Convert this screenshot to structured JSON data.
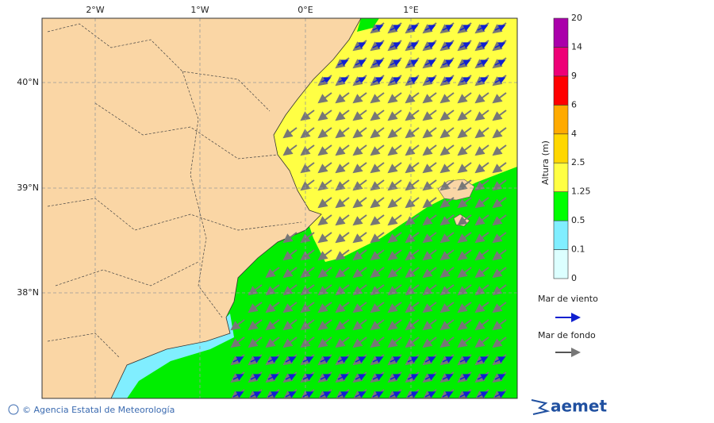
{
  "map": {
    "lon_labels": [
      "2°W",
      "1°W",
      "0°E",
      "1°E"
    ],
    "lat_labels": [
      "40°N",
      "39°N",
      "38°N"
    ],
    "colorbar": {
      "title": "Altura (m)",
      "levels": [
        0,
        0.1,
        0.5,
        1.25,
        2.5,
        4,
        6,
        9,
        14,
        20
      ],
      "colors": [
        "#dcffff",
        "#80eeff",
        "#00ff00",
        "#ffff44",
        "#ffd700",
        "#ffaa00",
        "#ff0000",
        "#ee0077",
        "#aa00aa"
      ]
    },
    "legend": [
      "Mar de viento",
      "Mar de fondo"
    ],
    "credit": "© Agencia Estatal de Meteorología",
    "logo": "aemet"
  }
}
